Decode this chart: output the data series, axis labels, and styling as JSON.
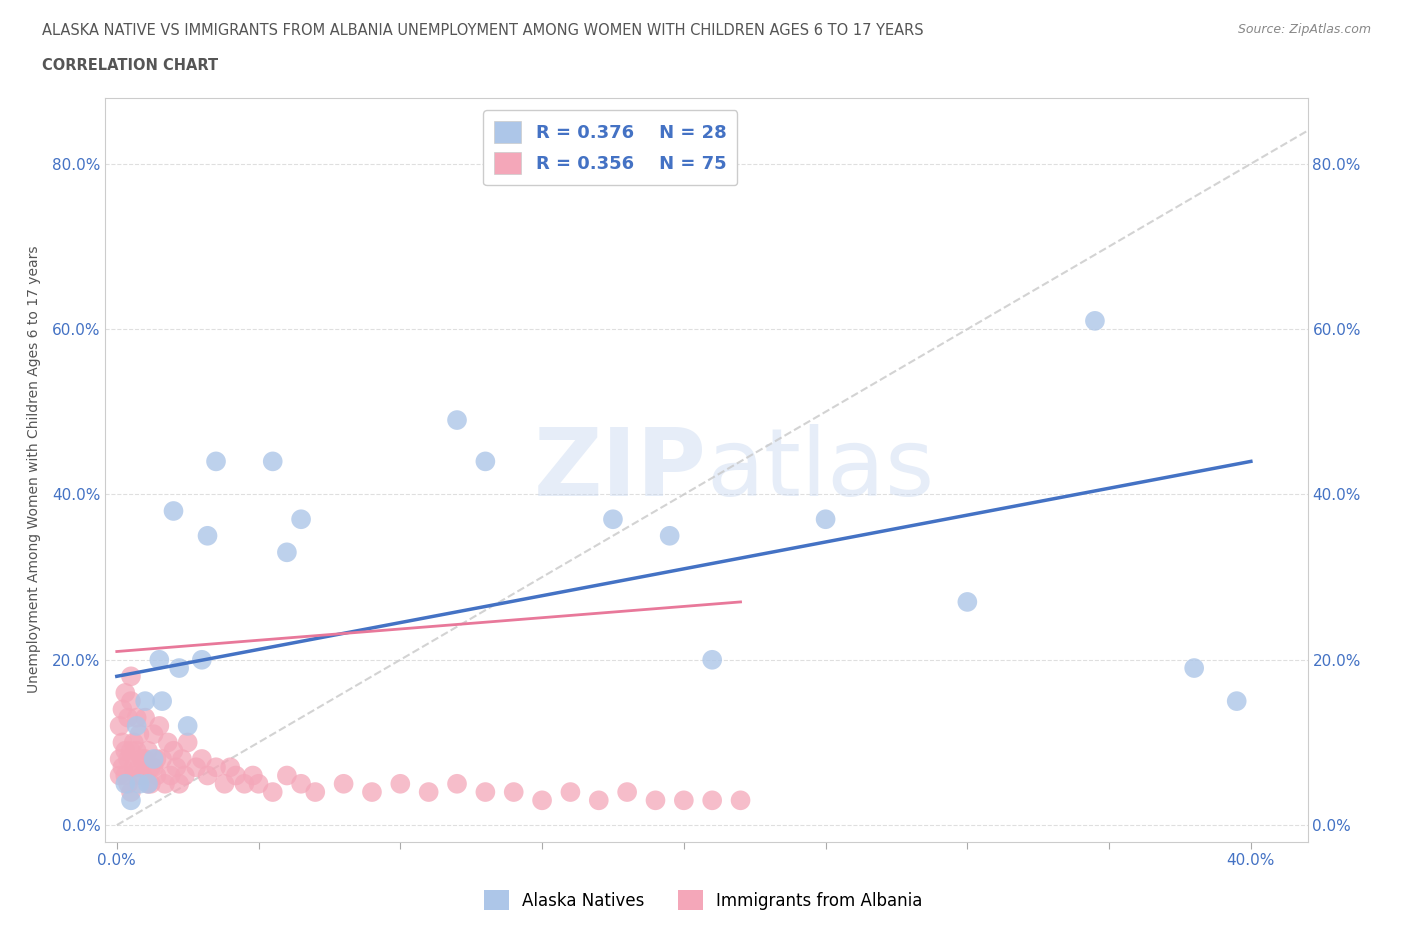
{
  "title_line1": "ALASKA NATIVE VS IMMIGRANTS FROM ALBANIA UNEMPLOYMENT AMONG WOMEN WITH CHILDREN AGES 6 TO 17 YEARS",
  "title_line2": "CORRELATION CHART",
  "source_text": "Source: ZipAtlas.com",
  "ylabel": "Unemployment Among Women with Children Ages 6 to 17 years",
  "xlim": [
    -0.004,
    0.42
  ],
  "ylim": [
    -0.02,
    0.88
  ],
  "xticks": [
    0.0,
    0.05,
    0.1,
    0.15,
    0.2,
    0.25,
    0.3,
    0.35,
    0.4
  ],
  "yticks": [
    0.0,
    0.2,
    0.4,
    0.6,
    0.8
  ],
  "xtick_labels": [
    "0.0%",
    "",
    "",
    "",
    "",
    "",
    "",
    "",
    "40.0%"
  ],
  "ytick_labels": [
    "0.0%",
    "20.0%",
    "40.0%",
    "60.0%",
    "80.0%"
  ],
  "alaska_color": "#adc6e8",
  "albania_color": "#f4a7b9",
  "trend_alaska_color": "#4472c4",
  "trend_albania_color": "#e8789a",
  "diagonal_color": "#c8c8c8",
  "watermark_color": "#ccd9ee",
  "legend_R_alaska": "R = 0.376",
  "legend_N_alaska": "N = 28",
  "legend_R_albania": "R = 0.356",
  "legend_N_albania": "N = 75",
  "alaska_scatter_x": [
    0.003,
    0.005,
    0.007,
    0.008,
    0.01,
    0.011,
    0.013,
    0.015,
    0.016,
    0.02,
    0.022,
    0.025,
    0.03,
    0.032,
    0.035,
    0.055,
    0.06,
    0.065,
    0.12,
    0.13,
    0.175,
    0.195,
    0.21,
    0.25,
    0.3,
    0.345,
    0.38,
    0.395
  ],
  "alaska_scatter_y": [
    0.05,
    0.03,
    0.12,
    0.05,
    0.15,
    0.05,
    0.08,
    0.2,
    0.15,
    0.38,
    0.19,
    0.12,
    0.2,
    0.35,
    0.44,
    0.44,
    0.33,
    0.37,
    0.49,
    0.44,
    0.37,
    0.35,
    0.2,
    0.37,
    0.27,
    0.61,
    0.19,
    0.15
  ],
  "albania_scatter_x": [
    0.001,
    0.001,
    0.001,
    0.002,
    0.002,
    0.002,
    0.003,
    0.003,
    0.003,
    0.004,
    0.004,
    0.004,
    0.005,
    0.005,
    0.005,
    0.005,
    0.006,
    0.006,
    0.007,
    0.007,
    0.007,
    0.008,
    0.008,
    0.009,
    0.009,
    0.01,
    0.01,
    0.011,
    0.011,
    0.012,
    0.012,
    0.013,
    0.013,
    0.014,
    0.014,
    0.015,
    0.016,
    0.017,
    0.018,
    0.019,
    0.02,
    0.021,
    0.022,
    0.023,
    0.024,
    0.025,
    0.028,
    0.03,
    0.032,
    0.035,
    0.038,
    0.04,
    0.042,
    0.045,
    0.048,
    0.05,
    0.055,
    0.06,
    0.065,
    0.07,
    0.08,
    0.09,
    0.1,
    0.11,
    0.12,
    0.13,
    0.14,
    0.15,
    0.16,
    0.17,
    0.18,
    0.19,
    0.2,
    0.21,
    0.22
  ],
  "albania_scatter_y": [
    0.08,
    0.12,
    0.06,
    0.1,
    0.14,
    0.07,
    0.09,
    0.16,
    0.06,
    0.13,
    0.08,
    0.05,
    0.18,
    0.15,
    0.09,
    0.04,
    0.1,
    0.07,
    0.09,
    0.13,
    0.06,
    0.11,
    0.07,
    0.06,
    0.08,
    0.13,
    0.08,
    0.05,
    0.09,
    0.07,
    0.05,
    0.11,
    0.07,
    0.06,
    0.08,
    0.12,
    0.08,
    0.05,
    0.1,
    0.06,
    0.09,
    0.07,
    0.05,
    0.08,
    0.06,
    0.1,
    0.07,
    0.08,
    0.06,
    0.07,
    0.05,
    0.07,
    0.06,
    0.05,
    0.06,
    0.05,
    0.04,
    0.06,
    0.05,
    0.04,
    0.05,
    0.04,
    0.05,
    0.04,
    0.05,
    0.04,
    0.04,
    0.03,
    0.04,
    0.03,
    0.04,
    0.03,
    0.03,
    0.03,
    0.03
  ],
  "alaska_trend_x": [
    0.0,
    0.4
  ],
  "alaska_trend_y": [
    0.18,
    0.44
  ],
  "albania_trend_x": [
    0.0,
    0.22
  ],
  "albania_trend_y": [
    0.21,
    0.27
  ],
  "grid_color": "#d8d8d8",
  "title_color": "#555555",
  "tick_color": "#4472c4",
  "background_color": "#ffffff"
}
